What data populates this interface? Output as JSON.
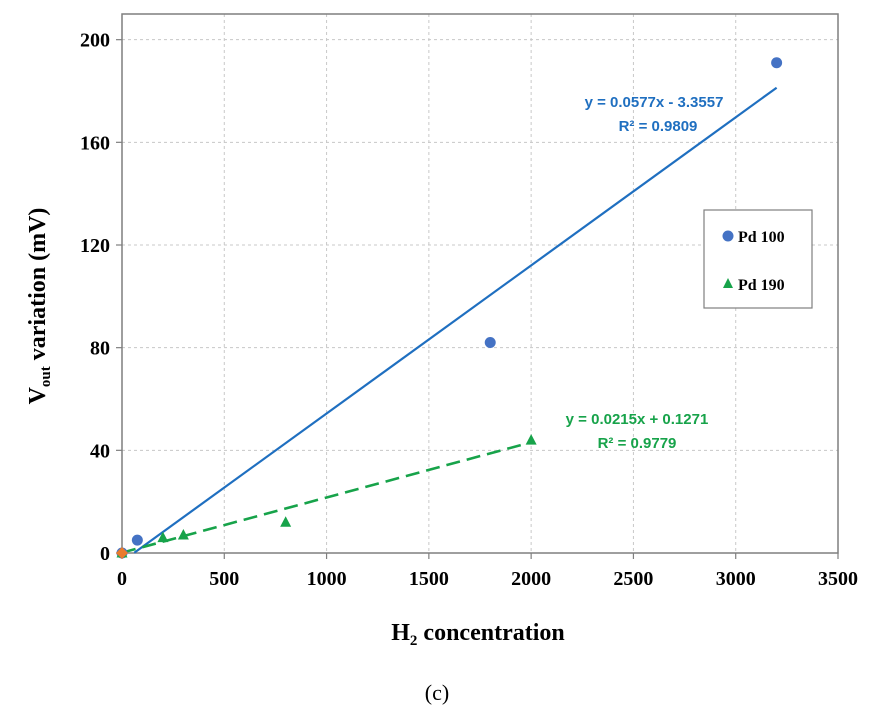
{
  "chart_data": {
    "type": "scatter",
    "xlabel": "H",
    "xlabel_sub": "2",
    "xlabel_rest": " concentration",
    "ylabel": "V",
    "ylabel_sub": "out",
    "ylabel_rest": " variation (mV)",
    "xlim": [
      0,
      3500
    ],
    "ylim": [
      0,
      210
    ],
    "xticks": [
      0,
      500,
      1000,
      1500,
      2000,
      2500,
      3000,
      3500
    ],
    "yticks": [
      0,
      40,
      80,
      120,
      160,
      200
    ],
    "grid": true,
    "legend_position": "right",
    "series": [
      {
        "name": "Pd 100",
        "marker": "circle",
        "color": "#4472C4",
        "x": [
          0,
          75,
          1800,
          3200
        ],
        "y": [
          0,
          5,
          82,
          191
        ],
        "trendline": {
          "slope": 0.0577,
          "intercept": -3.3557,
          "x_range": [
            60,
            3200
          ],
          "style": "solid",
          "color": "#1F6FC0",
          "equation": "y = 0.0577x - 3.3557",
          "r2": "R² = 0.9809"
        }
      },
      {
        "name": "Pd 190",
        "marker": "triangle",
        "color": "#17A34A",
        "x": [
          0,
          200,
          300,
          800,
          2000
        ],
        "y": [
          0,
          6,
          7,
          12,
          44
        ],
        "trendline": {
          "slope": 0.0215,
          "intercept": 0.1271,
          "x_range": [
            0,
            2000
          ],
          "style": "dashed",
          "color": "#17A34A",
          "equation": "y = 0.0215x + 0.1271",
          "r2": "R² = 0.9779"
        }
      }
    ],
    "extra_points": [
      {
        "x": 0,
        "y": 0,
        "marker": "diamond",
        "color": "#E97B2C"
      }
    ]
  },
  "caption": "(c)"
}
